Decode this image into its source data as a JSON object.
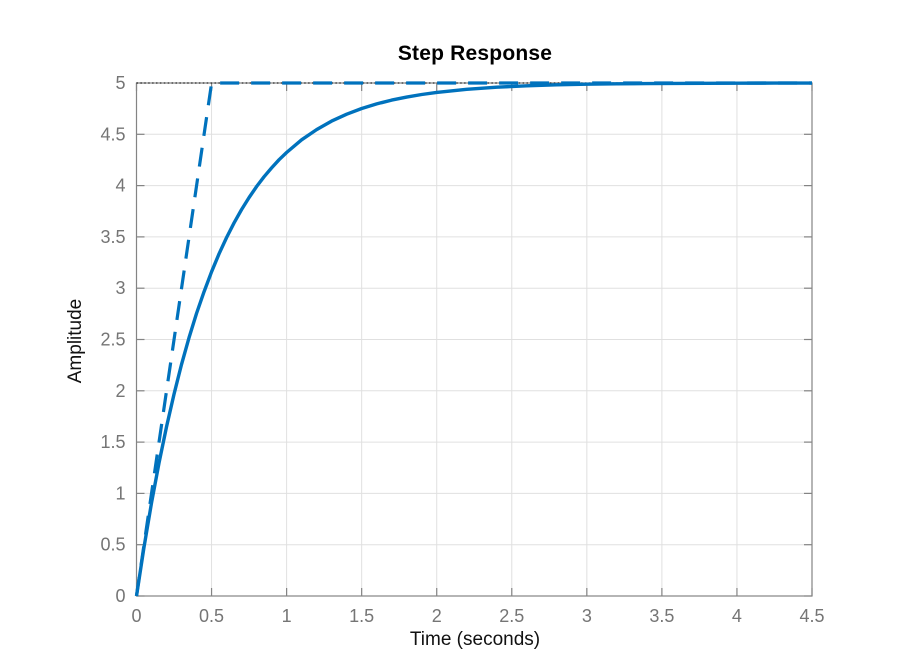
{
  "chart_data": {
    "type": "line",
    "title": "Step Response",
    "xlabel": "Time (seconds)",
    "ylabel": "Amplitude",
    "xlim": [
      0,
      4.5
    ],
    "ylim": [
      0,
      5
    ],
    "grid": true,
    "legend_position": "none",
    "x_ticks": [
      0,
      0.5,
      1,
      1.5,
      2,
      2.5,
      3,
      3.5,
      4,
      4.5
    ],
    "x_tick_labels": [
      "0",
      "0.5",
      "1",
      "1.5",
      "2",
      "2.5",
      "3",
      "3.5",
      "4",
      "4.5"
    ],
    "y_ticks": [
      0,
      0.5,
      1,
      1.5,
      2,
      2.5,
      3,
      3.5,
      4,
      4.5,
      5
    ],
    "y_tick_labels": [
      "0",
      "0.5",
      "1",
      "1.5",
      "2",
      "2.5",
      "3",
      "3.5",
      "4",
      "4.5",
      "5"
    ],
    "colors": {
      "line_blue": "#0072BD",
      "steady_state_black": "#262626",
      "axis_gray": "#848484",
      "grid_gray": "#e0e0e0",
      "tick_label_gray": "#757575"
    },
    "series": [
      {
        "name": "step-response",
        "line_style": "solid",
        "color_key": "line_blue",
        "width": 3.4,
        "points": [
          [
            0,
            0
          ],
          [
            0.05,
            0.476
          ],
          [
            0.1,
            0.906
          ],
          [
            0.15,
            1.296
          ],
          [
            0.2,
            1.648
          ],
          [
            0.25,
            1.967
          ],
          [
            0.3,
            2.256
          ],
          [
            0.35,
            2.517
          ],
          [
            0.4,
            2.753
          ],
          [
            0.45,
            2.967
          ],
          [
            0.5,
            3.161
          ],
          [
            0.55,
            3.336
          ],
          [
            0.6,
            3.494
          ],
          [
            0.65,
            3.637
          ],
          [
            0.7,
            3.767
          ],
          [
            0.75,
            3.884
          ],
          [
            0.8,
            3.991
          ],
          [
            0.85,
            4.087
          ],
          [
            0.9,
            4.173
          ],
          [
            0.95,
            4.252
          ],
          [
            1,
            4.323
          ],
          [
            1.1,
            4.446
          ],
          [
            1.2,
            4.546
          ],
          [
            1.3,
            4.629
          ],
          [
            1.4,
            4.696
          ],
          [
            1.5,
            4.751
          ],
          [
            1.6,
            4.796
          ],
          [
            1.7,
            4.833
          ],
          [
            1.8,
            4.863
          ],
          [
            1.9,
            4.888
          ],
          [
            2,
            4.908
          ],
          [
            2.2,
            4.939
          ],
          [
            2.4,
            4.959
          ],
          [
            2.6,
            4.973
          ],
          [
            2.8,
            4.982
          ],
          [
            3,
            4.988
          ],
          [
            3.2,
            4.992
          ],
          [
            3.4,
            4.994
          ],
          [
            3.6,
            4.996
          ],
          [
            3.8,
            4.997
          ],
          [
            4,
            4.998
          ],
          [
            4.25,
            4.999
          ],
          [
            4.5,
            4.999
          ]
        ]
      },
      {
        "name": "tangent-ramp",
        "line_style": "dashed",
        "color_key": "line_blue",
        "width": 3.2,
        "points": [
          [
            0,
            0
          ],
          [
            0.5,
            5
          ],
          [
            4.5,
            5
          ]
        ]
      },
      {
        "name": "steady-state-line",
        "line_style": "dotted",
        "color_key": "steady_state_black",
        "width": 1.2,
        "points": [
          [
            0,
            5
          ],
          [
            4.5,
            5
          ]
        ]
      }
    ]
  }
}
